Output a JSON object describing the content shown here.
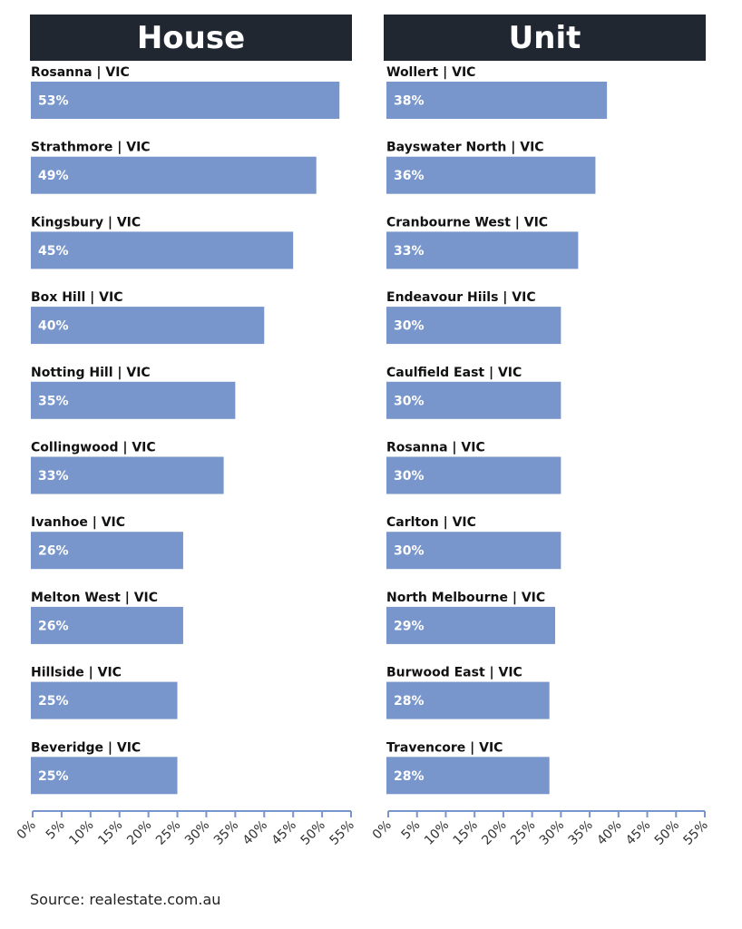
{
  "chart_data": [
    {
      "type": "bar",
      "orientation": "horizontal",
      "title": "House",
      "categories": [
        "Rosanna | VIC",
        "Strathmore | VIC",
        "Kingsbury | VIC",
        "Box Hill | VIC",
        "Notting Hill | VIC",
        "Collingwood | VIC",
        "Ivanhoe | VIC",
        "Melton West | VIC",
        "Hillside | VIC",
        "Beveridge | VIC"
      ],
      "values": [
        53,
        49,
        45,
        40,
        35,
        33,
        26,
        26,
        25,
        25
      ],
      "value_labels": [
        "53%",
        "49%",
        "45%",
        "40%",
        "35%",
        "33%",
        "26%",
        "26%",
        "25%",
        "25%"
      ],
      "xlim": [
        0,
        55
      ],
      "ticks": [
        "0%",
        "5%",
        "10%",
        "15%",
        "20%",
        "25%",
        "30%",
        "35%",
        "40%",
        "45%",
        "50%",
        "55%"
      ],
      "bar_color": "#7896cb",
      "grid": false
    },
    {
      "type": "bar",
      "orientation": "horizontal",
      "title": "Unit",
      "categories": [
        "Wollert | VIC",
        "Bayswater North | VIC",
        "Cranbourne West | VIC",
        "Endeavour Hiils | VIC",
        "Caulfield East | VIC",
        "Rosanna | VIC",
        "Carlton | VIC",
        "North Melbourne | VIC",
        "Burwood East | VIC",
        "Travencore | VIC"
      ],
      "values": [
        38,
        36,
        33,
        30,
        30,
        30,
        30,
        29,
        28,
        28
      ],
      "value_labels": [
        "38%",
        "36%",
        "33%",
        "30%",
        "30%",
        "30%",
        "30%",
        "29%",
        "28%",
        "28%"
      ],
      "xlim": [
        0,
        55
      ],
      "ticks": [
        "0%",
        "5%",
        "10%",
        "15%",
        "20%",
        "25%",
        "30%",
        "35%",
        "40%",
        "45%",
        "50%",
        "55%"
      ],
      "bar_color": "#7896cb",
      "grid": false
    }
  ],
  "header_color": "#212731",
  "axis_color": "#7896cb",
  "source": "Source: realestate.com.au"
}
